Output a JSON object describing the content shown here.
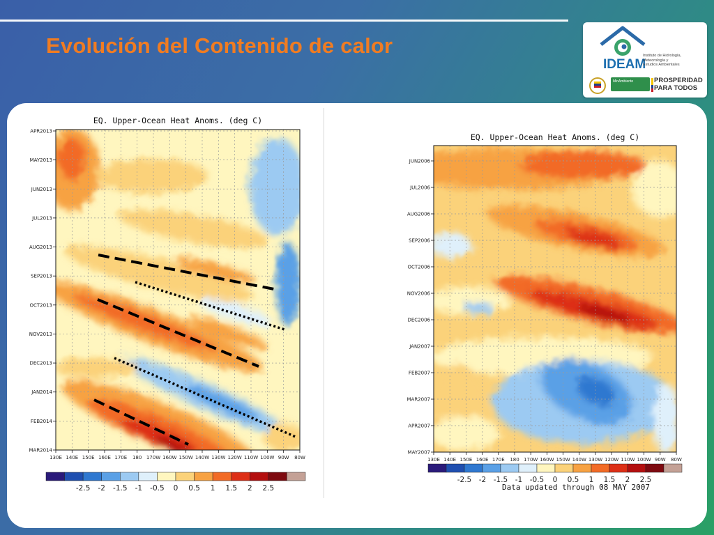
{
  "slide": {
    "title": "Evolución del Contenido de calor"
  },
  "logo": {
    "name": "IDEAM",
    "subtitle": [
      "Instituto de Hidrología,",
      "Meteorología y",
      "Estudios Ambientales"
    ],
    "ministry": "MinAmbiente",
    "slogan": [
      "PROSPERIDAD",
      "PARA TODOS"
    ],
    "icon": "ideam-house-swirl-icon"
  },
  "colors": {
    "title": "#f07c22",
    "scale": [
      "#2a1a7a",
      "#1f4fb0",
      "#2f78d0",
      "#5aa0e6",
      "#9ccaf2",
      "#dff0fb",
      "#fff6bf",
      "#fbd27a",
      "#f7a243",
      "#f26b26",
      "#dd2f16",
      "#b40f0f",
      "#7e0a10",
      "#c4a196"
    ]
  },
  "chart_data": [
    {
      "type": "heatmap",
      "title": "EQ. Upper-Ocean Heat Anoms. (deg C)",
      "x_ticks": [
        "130E",
        "140E",
        "150E",
        "160E",
        "170E",
        "180",
        "170W",
        "160W",
        "150W",
        "140W",
        "130W",
        "120W",
        "110W",
        "100W",
        "90W",
        "80W"
      ],
      "y_ticks": [
        "APR2013",
        "MAY2013",
        "JUN2013",
        "JUL2013",
        "AUG2013",
        "SEP2013",
        "OCT2013",
        "NOV2013",
        "DEC2013",
        "JAN2014",
        "FEB2014",
        "MAR2014"
      ],
      "colorbar_ticks": [
        "-2.5",
        "-2",
        "-1.5",
        "-1",
        "-0.5",
        "0",
        "0.5",
        "1",
        "1.5",
        "2",
        "2.5"
      ],
      "annotations": [
        "dashed line",
        "dotted line",
        "dashed line",
        "dotted line",
        "dashed line"
      ]
    },
    {
      "type": "heatmap",
      "title": "EQ. Upper-Ocean Heat Anoms. (deg C)",
      "x_ticks": [
        "130E",
        "140E",
        "150E",
        "160E",
        "170E",
        "180",
        "170W",
        "160W",
        "150W",
        "140W",
        "130W",
        "120W",
        "110W",
        "100W",
        "90W",
        "80W"
      ],
      "y_ticks": [
        "JUN2006",
        "JUL2006",
        "AUG2006",
        "SEP2006",
        "OCT2006",
        "NOV2006",
        "DEC2006",
        "JAN2007",
        "FEB2007",
        "MAR2007",
        "APR2007",
        "MAY2007"
      ],
      "colorbar_ticks": [
        "-2.5",
        "-2",
        "-1.5",
        "-1",
        "-0.5",
        "0",
        "0.5",
        "1",
        "1.5",
        "2",
        "2.5"
      ],
      "footer": "Data updated through 08 MAY 2007"
    }
  ]
}
